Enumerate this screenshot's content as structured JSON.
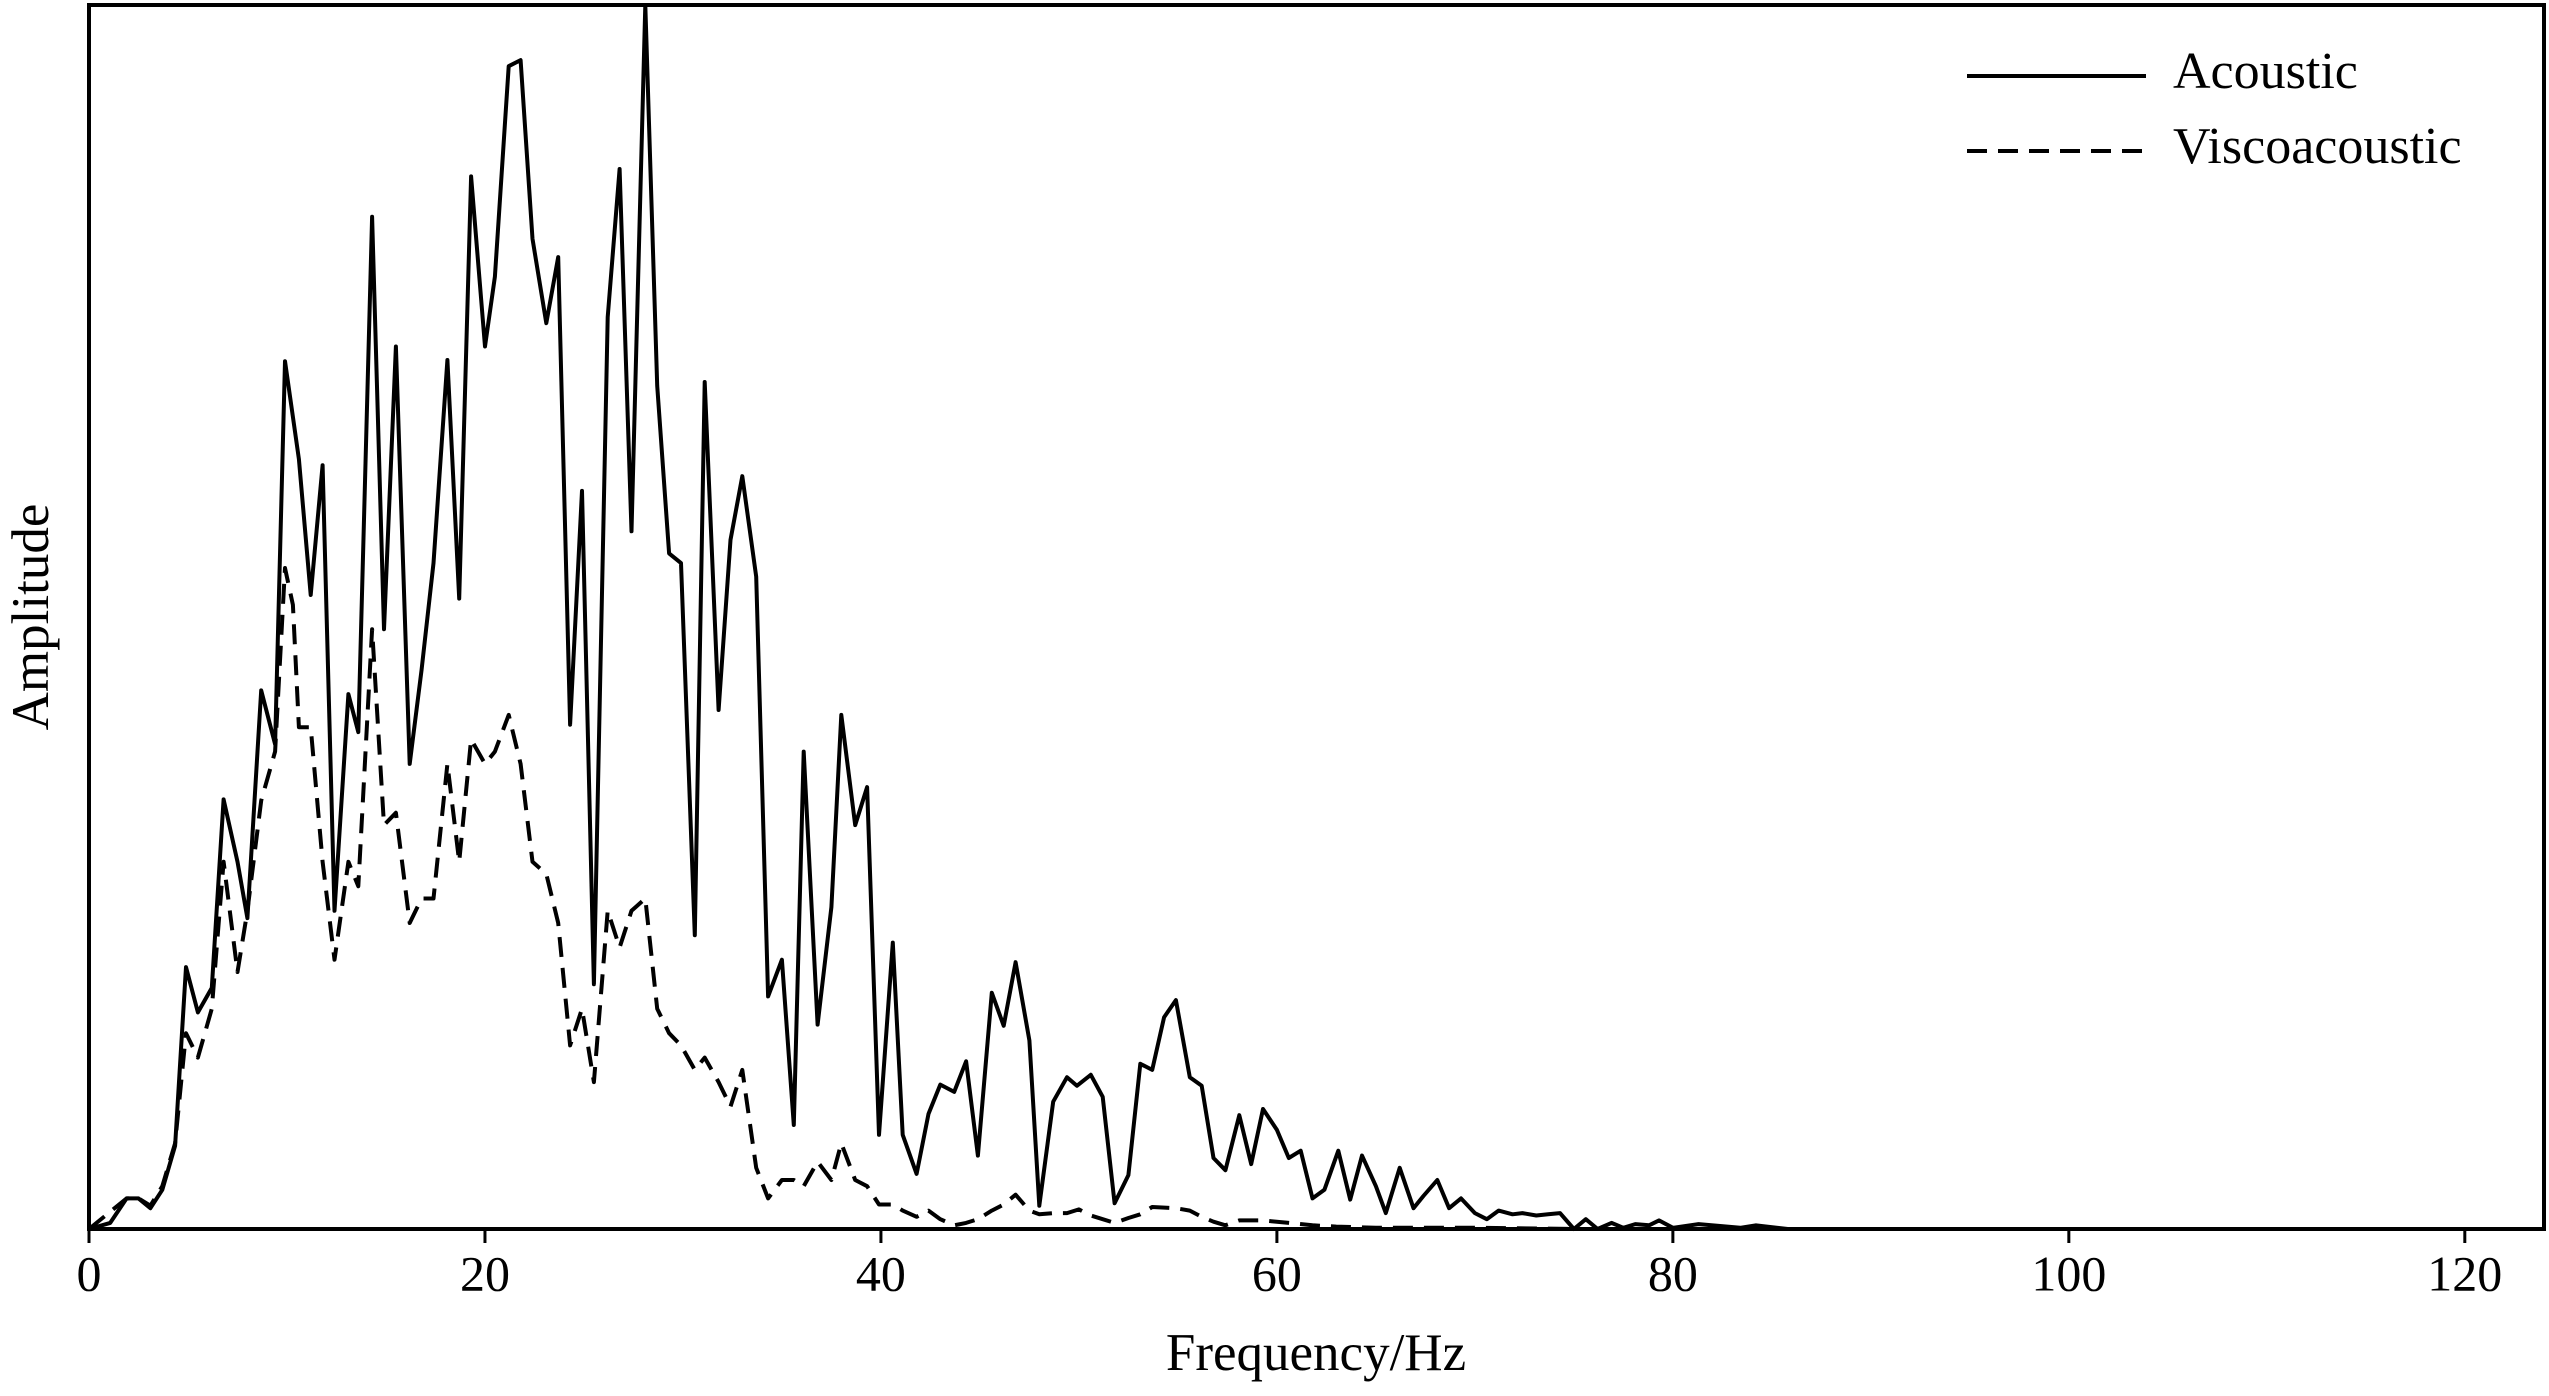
{
  "chart_data": {
    "type": "line",
    "x_label": "Frequency/Hz",
    "y_label": "Amplitude",
    "xlim": [
      0,
      124
    ],
    "ylim": [
      0,
      100
    ],
    "xticks": [
      0,
      20,
      40,
      60,
      80,
      100,
      120
    ],
    "legend": "top-right",
    "series": [
      {
        "name": "Acoustic",
        "color": "#000000",
        "dash": "solid",
        "x": [
          0,
          1.07,
          1.9,
          2.5,
          3.1,
          3.7,
          4.35,
          4.9,
          5.5,
          6.2,
          6.8,
          7.5,
          8.0,
          8.7,
          9.4,
          9.9,
          10.6,
          11.2,
          11.8,
          12.4,
          13.1,
          13.6,
          14.3,
          14.9,
          15.5,
          16.2,
          16.8,
          17.4,
          18.1,
          18.7,
          19.3,
          20.0,
          20.5,
          21.2,
          21.8,
          22.4,
          23.1,
          23.7,
          24.3,
          24.9,
          25.5,
          26.2,
          26.8,
          27.4,
          28.1,
          28.7,
          29.3,
          29.9,
          30.6,
          31.1,
          31.8,
          32.4,
          33.0,
          33.7,
          34.3,
          35.0,
          35.6,
          36.1,
          36.8,
          37.5,
          38.0,
          38.7,
          39.3,
          39.9,
          40.6,
          41.1,
          41.8,
          42.4,
          43.0,
          43.7,
          44.3,
          44.9,
          45.6,
          46.2,
          46.8,
          47.5,
          48.0,
          48.7,
          49.4,
          49.9,
          50.6,
          51.2,
          51.8,
          52.5,
          53.1,
          53.7,
          54.3,
          54.9,
          55.6,
          56.2,
          56.8,
          57.4,
          58.1,
          58.7,
          59.3,
          60.0,
          60.6,
          61.2,
          61.8,
          62.4,
          63.1,
          63.7,
          64.3,
          65.0,
          65.5,
          66.2,
          66.9,
          67.4,
          68.1,
          68.7,
          69.3,
          70.0,
          70.6,
          71.2,
          71.9,
          72.4,
          73.1,
          73.7,
          74.3,
          75.0,
          75.6,
          76.2,
          76.9,
          77.5,
          78.1,
          78.8,
          79.3,
          80,
          81.3,
          83.4,
          84.2,
          85.8,
          124
        ],
        "values": [
          0,
          0.5,
          2.5,
          2.5,
          1.7,
          3.2,
          6.8,
          21.4,
          17.7,
          19.7,
          35.1,
          30,
          25.4,
          44,
          39.6,
          70.9,
          62.9,
          51.8,
          62.4,
          26,
          43.7,
          40.6,
          82.7,
          49,
          72.1,
          38,
          45.7,
          54.4,
          71,
          51.5,
          86,
          72.1,
          77.8,
          95,
          95.5,
          80.9,
          74,
          79.4,
          41.2,
          60.3,
          20,
          74.5,
          86.6,
          57,
          100,
          68.9,
          55.2,
          54.4,
          24,
          69.2,
          42.4,
          56.3,
          61.5,
          53.3,
          19,
          22,
          8.5,
          39,
          16.7,
          26.3,
          42,
          33,
          36.1,
          7.7,
          23.4,
          7.7,
          4.5,
          9.4,
          11.8,
          11.2,
          13.7,
          6,
          19.3,
          16.6,
          21.8,
          15.4,
          1.9,
          10.4,
          12.4,
          11.7,
          12.6,
          10.8,
          2.1,
          4.4,
          13.5,
          13,
          17.3,
          18.7,
          12.4,
          11.7,
          5.8,
          4.8,
          9.3,
          5.3,
          9.8,
          8.1,
          5.8,
          6.4,
          2.5,
          3.2,
          6.4,
          2.4,
          6,
          3.5,
          1.3,
          5,
          1.7,
          2.7,
          4,
          1.7,
          2.5,
          1.3,
          0.8,
          1.5,
          1.2,
          1.3,
          1.1,
          1.2,
          1.3,
          0,
          0.8,
          0,
          0.5,
          0.1,
          0.4,
          0.3,
          0.7,
          0.1,
          0.4,
          0.1,
          0.3,
          0,
          0
        ]
      },
      {
        "name": "Viscoacoustic",
        "color": "#000000",
        "dash": "dashed",
        "x": [
          0,
          1.9,
          2.5,
          3.1,
          3.7,
          4.35,
          4.9,
          5.5,
          6.2,
          6.8,
          7.5,
          8.0,
          8.7,
          9.4,
          9.9,
          10.3,
          10.6,
          11.2,
          11.8,
          12.4,
          13.1,
          13.6,
          14.3,
          14.9,
          15.5,
          16.2,
          16.8,
          17.4,
          18.1,
          18.7,
          19.3,
          20.0,
          20.5,
          21.2,
          21.8,
          22.4,
          23.1,
          23.7,
          24.3,
          24.9,
          25.5,
          26.2,
          26.8,
          27.4,
          28.1,
          28.7,
          29.3,
          29.9,
          30.6,
          31.1,
          31.8,
          32.4,
          33.0,
          33.7,
          34.3,
          35.0,
          35.6,
          36.1,
          36.8,
          37.5,
          38.0,
          38.7,
          39.3,
          39.9,
          40.6,
          41.1,
          41.8,
          42.4,
          43.0,
          43.7,
          44.3,
          44.9,
          45.6,
          46.2,
          46.8,
          47.5,
          48.0,
          48.7,
          49.4,
          50.0,
          50.6,
          51.2,
          51.8,
          52.5,
          53.1,
          53.7,
          54.9,
          55.6,
          56.2,
          56.8,
          57.4,
          58.1,
          59.3,
          60.6,
          61.8,
          63,
          65,
          70,
          75,
          124
        ],
        "values": [
          0,
          2.5,
          2.5,
          1.9,
          3.5,
          7,
          16,
          14,
          18,
          30,
          21,
          26,
          35,
          39,
          54,
          51,
          41,
          41,
          30,
          22,
          30,
          28,
          49,
          33,
          34,
          25,
          27,
          27,
          38,
          30,
          40,
          38,
          39,
          42,
          38,
          30,
          29,
          25,
          15,
          18,
          12,
          26,
          23,
          26,
          27,
          18,
          16,
          15,
          13,
          14,
          12,
          10,
          13,
          5,
          2.5,
          4,
          4,
          3.5,
          5.5,
          4,
          7,
          4,
          3.5,
          2,
          2,
          1.5,
          1,
          1.5,
          0.8,
          0.3,
          0.5,
          0.8,
          1.5,
          2,
          2.8,
          1.5,
          1.2,
          1.3,
          1.3,
          1.6,
          1.1,
          0.8,
          0.5,
          0.9,
          1.2,
          1.8,
          1.7,
          1.5,
          1,
          0.6,
          0.3,
          0.7,
          0.7,
          0.5,
          0.3,
          0.2,
          0.1,
          0.1,
          0,
          0
        ]
      }
    ]
  }
}
